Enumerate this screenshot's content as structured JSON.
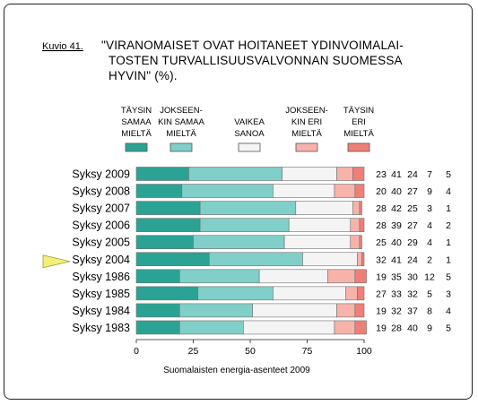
{
  "figure_label": "Kuvio 41.",
  "title_lines": [
    "\"VIRANOMAISET OVAT HOITANEET YDINVOIMALAI-",
    "TOSTEN TURVALLISUUSVALVONNAN SUOMESSA",
    "HYVIN\" (%)."
  ],
  "source": "Suomalaisten energia-asenteet 2009",
  "colors": [
    "#2ba394",
    "#80cfc8",
    "#f4f4f4",
    "#f7b3aa",
    "#f07f78"
  ],
  "chart_data": {
    "type": "bar",
    "orientation": "horizontal-stacked-100",
    "title": "\"VIRANOMAISET OVAT HOITANEET YDINVOIMALAITOSTEN TURVALLISUUSVALVONNAN SUOMESSA HYVIN\" (%).",
    "categories": [
      "Syksy 2009",
      "Syksy 2008",
      "Syksy 2007",
      "Syksy 2006",
      "Syksy 2005",
      "Syksy 2004",
      "Syksy 1986",
      "Syksy 1985",
      "Syksy 1984",
      "Syksy 1983"
    ],
    "series": [
      {
        "name": "TÄYSIN SAMAA MIELTÄ",
        "legend_lines": [
          "TÄYSIN",
          "SAMAA",
          "MIELTÄ"
        ],
        "values": [
          23,
          20,
          28,
          28,
          25,
          32,
          19,
          27,
          19,
          19
        ]
      },
      {
        "name": "JOKSEEN-KIN SAMAA MIELTÄ",
        "legend_lines": [
          "JOKSEEN-",
          "KIN SAMAA",
          "MIELTÄ"
        ],
        "values": [
          41,
          40,
          42,
          39,
          40,
          41,
          35,
          33,
          32,
          28
        ]
      },
      {
        "name": "VAIKEA SANOA",
        "legend_lines": [
          "VAIKEA",
          "SANOA"
        ],
        "values": [
          24,
          27,
          25,
          27,
          29,
          24,
          30,
          32,
          37,
          40
        ]
      },
      {
        "name": "JOKSEEN-KIN ERI MIELTÄ",
        "legend_lines": [
          "JOKSEEN-",
          "KIN ERI",
          "MIELTÄ"
        ],
        "values": [
          7,
          9,
          3,
          4,
          4,
          2,
          12,
          5,
          8,
          9
        ]
      },
      {
        "name": "TÄYSIN ERI MIELTÄ",
        "legend_lines": [
          "TÄYSIN",
          "ERI",
          "MIELTÄ"
        ],
        "values": [
          5,
          4,
          1,
          2,
          1,
          1,
          5,
          3,
          4,
          5
        ]
      }
    ],
    "xticks": [
      "0",
      "25",
      "50",
      "75",
      "100"
    ],
    "xlim": [
      0,
      100
    ],
    "highlighted_category": "Syksy 2004",
    "grid": false,
    "legend_position": "top"
  }
}
